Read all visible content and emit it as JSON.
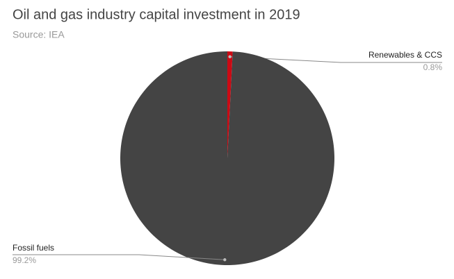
{
  "chart_data": {
    "type": "pie",
    "title": "Oil and gas industry capital investment in 2019",
    "subtitle": "Source: IEA",
    "categories": [
      "Renewables & CCS",
      "Fossil fuels"
    ],
    "values": [
      0.8,
      99.2
    ],
    "value_labels": [
      "0.8%",
      "99.2%"
    ],
    "colors": [
      "#cc0a14",
      "#444444"
    ]
  }
}
